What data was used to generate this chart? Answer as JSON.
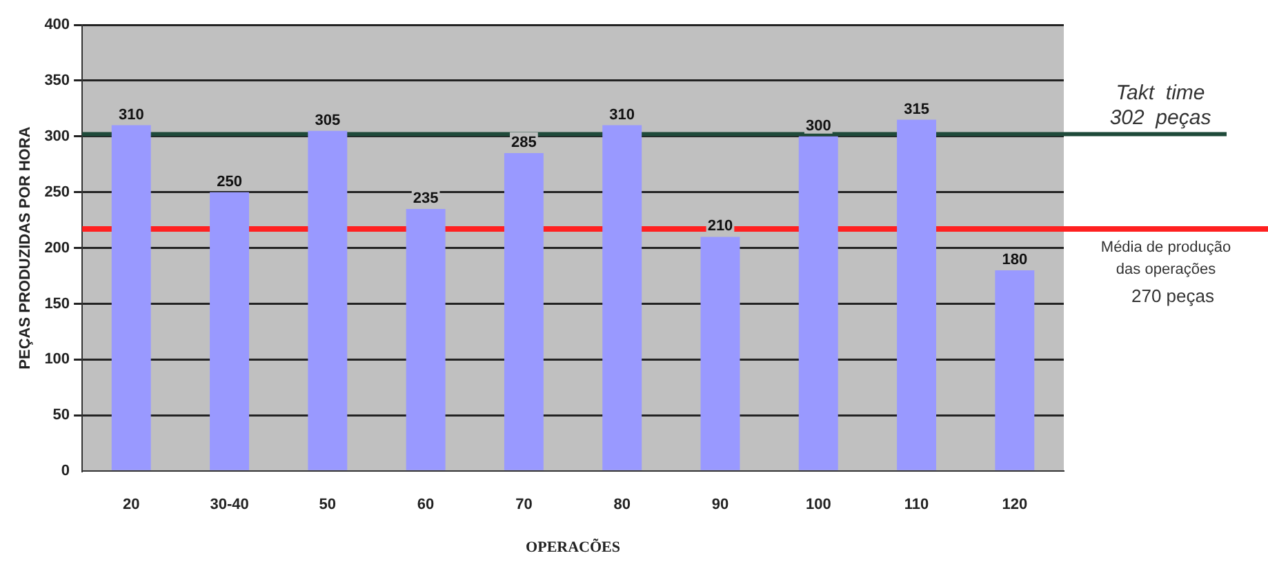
{
  "chart_data": {
    "type": "bar",
    "xlabel": "OPERACÕES",
    "ylabel": "PEÇAS PRODUZIDAS POR HORA",
    "categories": [
      "20",
      "30-40",
      "50",
      "60",
      "70",
      "80",
      "90",
      "100",
      "110",
      "120"
    ],
    "values": [
      310,
      250,
      305,
      235,
      285,
      310,
      210,
      300,
      315,
      180
    ],
    "color": "#9999ff",
    "ylim": [
      0,
      400
    ],
    "yticks": [
      0,
      50,
      100,
      150,
      200,
      250,
      300,
      350,
      400
    ],
    "grid": "y",
    "data_labels": true,
    "legend": false,
    "ref_lines": [
      {
        "axis": "y",
        "value": 302,
        "label": "Takt  time\n302  peças",
        "color": "#1f4a3a"
      },
      {
        "axis": "y",
        "value": 217,
        "label": "Média de produção\ndas operações\n270 peças",
        "color": "#ff2020"
      }
    ]
  }
}
